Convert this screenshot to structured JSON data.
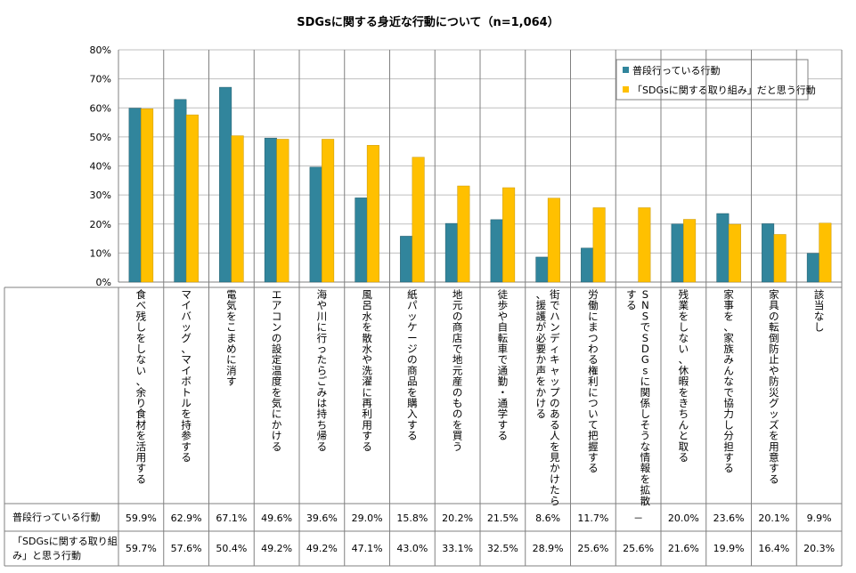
{
  "chart_data": {
    "type": "bar",
    "title": "SDGsに関する身近な行動について（n=1,064）",
    "ylim": [
      0,
      80
    ],
    "yticks": [
      "0%",
      "10%",
      "20%",
      "30%",
      "40%",
      "50%",
      "60%",
      "70%",
      "80%"
    ],
    "grid": true,
    "legend_position": "top-right",
    "categories": [
      "食べ残しをしない、余り食材を活用する",
      "マイバッグ、マイボトルを持参する",
      "電気をこまめに消す",
      "エアコンの設定温度を気にかける",
      "海や川に行ったらごみは持ち帰る",
      "風呂水を散水や洗濯に再利用する",
      "紙パッケージの商品を購入する",
      "地元の商店で地元産のものを買う",
      "徒歩や自転車で通勤・通学する",
      "街でハンディキャップのある人を見かけたら、援護が必要か声をかける",
      "労働にまつわる権利について把握する",
      "SNSでSDGsに関係しそうな情報を拡散する",
      "残業をしない、休暇をきちんと取る",
      "家事を、家族みんなで協力し分担する",
      "家具の転倒防止や防災グッズを用意する",
      "該当なし"
    ],
    "series": [
      {
        "name": "普段行っている行動",
        "table_label": "普段行っている行動",
        "color": "#31859C",
        "values": [
          59.9,
          62.9,
          67.1,
          49.6,
          39.6,
          29.0,
          15.8,
          20.2,
          21.5,
          8.6,
          11.7,
          null,
          20.0,
          23.6,
          20.1,
          9.9
        ],
        "labels": [
          "59.9%",
          "62.9%",
          "67.1%",
          "49.6%",
          "39.6%",
          "29.0%",
          "15.8%",
          "20.2%",
          "21.5%",
          "8.6%",
          "11.7%",
          "－",
          "20.0%",
          "23.6%",
          "20.1%",
          "9.9%"
        ]
      },
      {
        "name": "「SDGsに関する取り組み」だと思う行動",
        "table_label": "「SDGsに関する取り組み」と思う行動",
        "color": "#FFC000",
        "values": [
          59.7,
          57.6,
          50.4,
          49.2,
          49.2,
          47.1,
          43.0,
          33.1,
          32.5,
          28.9,
          25.6,
          25.6,
          21.6,
          19.9,
          16.4,
          20.3
        ],
        "labels": [
          "59.7%",
          "57.6%",
          "50.4%",
          "49.2%",
          "49.2%",
          "47.1%",
          "43.0%",
          "33.1%",
          "32.5%",
          "28.9%",
          "25.6%",
          "25.6%",
          "21.6%",
          "19.9%",
          "16.4%",
          "20.3%"
        ]
      }
    ]
  }
}
